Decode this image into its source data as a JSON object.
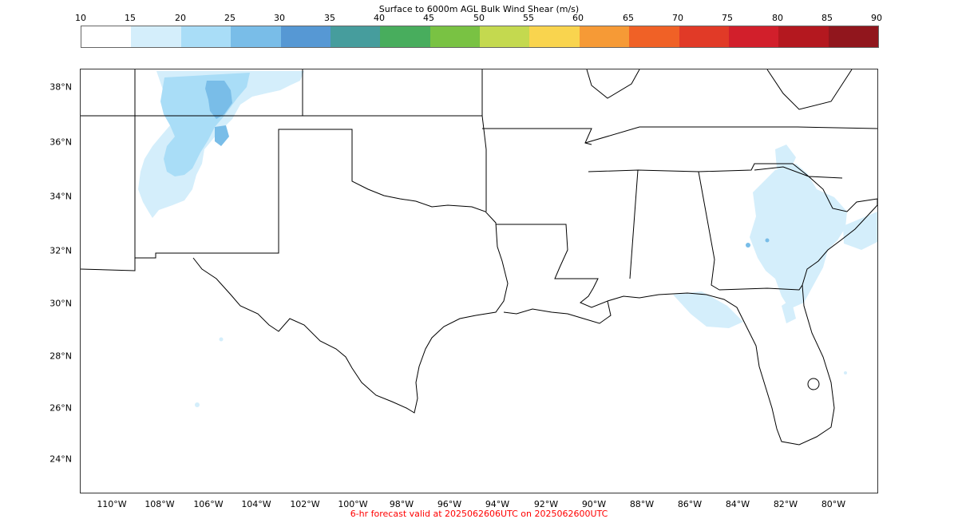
{
  "colorbar": {
    "title": "Surface to 6000m AGL Bulk Wind Shear (m/s)",
    "ticks": [
      "10",
      "15",
      "20",
      "25",
      "30",
      "35",
      "40",
      "45",
      "50",
      "55",
      "60",
      "65",
      "70",
      "75",
      "80",
      "85",
      "90"
    ],
    "colors": [
      "#ffffff",
      "#d4eefb",
      "#a9ddf7",
      "#79bde8",
      "#5698d4",
      "#469d9d",
      "#48ad5d",
      "#79c243",
      "#c4d94f",
      "#f9d44e",
      "#f69a36",
      "#f06126",
      "#e13a27",
      "#d21f2b",
      "#b4181f",
      "#91161d"
    ]
  },
  "map": {
    "lat_labels": [
      "38°N",
      "36°N",
      "34°N",
      "32°N",
      "30°N",
      "28°N",
      "26°N",
      "24°N"
    ],
    "lon_labels": [
      "110°W",
      "108°W",
      "106°W",
      "104°W",
      "102°W",
      "100°W",
      "98°W",
      "96°W",
      "94°W",
      "92°W",
      "90°W",
      "88°W",
      "86°W",
      "84°W",
      "82°W",
      "80°W"
    ]
  },
  "footer": {
    "valid_text": "6-hr forecast valid at 2025062606UTC on 2025062600UTC"
  }
}
